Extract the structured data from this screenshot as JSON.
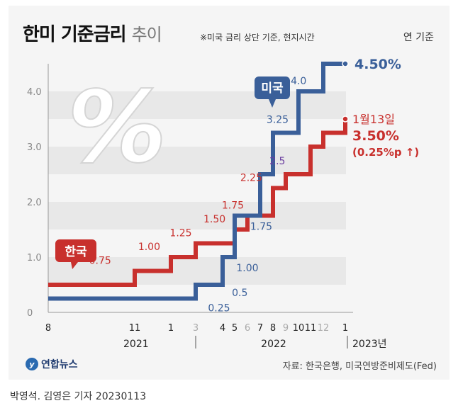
{
  "header": {
    "title": "한미 기준금리",
    "subtitle": "추이",
    "note": "※미국 금리 상단 기준, 현지시간",
    "unit": "연 기준"
  },
  "footer": {
    "logo_text": "연합뉴스",
    "source": "자료: 한국은행, 미국연방준비제도(Fed)",
    "byline": "박영석. 김영은 기자  20230113"
  },
  "colors": {
    "korea": "#c8302d",
    "us": "#3a5f99",
    "us_highlight": "#6b3fa0",
    "grid_band": "#e8e8e8",
    "axis": "#999999"
  },
  "chart_data": {
    "type": "line",
    "step": true,
    "yticks": [
      "0",
      "1.0",
      "2.0",
      "3.0",
      "4.0"
    ],
    "ylim": [
      0,
      4.5
    ],
    "xlabels": [
      "8",
      "11",
      "1",
      "3",
      "4",
      "5",
      "6",
      "7",
      "8",
      "9",
      "10",
      "11",
      "12",
      "1"
    ],
    "xlabel_dim": [
      false,
      false,
      false,
      true,
      false,
      false,
      true,
      false,
      false,
      true,
      false,
      false,
      true,
      false
    ],
    "year_labels": [
      "2021",
      "2022",
      "2023년"
    ],
    "series": [
      {
        "name": "한국",
        "color": "#c8302d",
        "points": [
          [
            0,
            0.5
          ],
          [
            1,
            0.75
          ],
          [
            2,
            1.0
          ],
          [
            3,
            1.25
          ],
          [
            5,
            1.5
          ],
          [
            6,
            1.75
          ],
          [
            8,
            2.25
          ],
          [
            9,
            2.5
          ],
          [
            11,
            3.0
          ],
          [
            12,
            3.25
          ],
          [
            13,
            3.5
          ]
        ],
        "labels": [
          {
            "text": "0.75",
            "x": 0.6,
            "y": 0.75
          },
          {
            "text": "1.00",
            "x": 1.4,
            "y": 1.0
          },
          {
            "text": "1.25",
            "x": 2.4,
            "y": 1.25
          },
          {
            "text": "1.50",
            "x": 3.7,
            "y": 1.5
          },
          {
            "text": "1.75",
            "x": 4.85,
            "y": 1.75
          },
          {
            "text": "2.25",
            "x": 6.3,
            "y": 2.25
          }
        ]
      },
      {
        "name": "미국",
        "color": "#3a5f99",
        "points": [
          [
            0,
            0.25
          ],
          [
            3,
            0.5
          ],
          [
            4,
            1.0
          ],
          [
            5,
            1.75
          ],
          [
            7,
            2.5
          ],
          [
            8,
            3.25
          ],
          [
            10,
            4.0
          ],
          [
            12,
            4.5
          ],
          [
            13,
            4.5
          ]
        ],
        "labels": [
          {
            "text": "0.25",
            "x": 3.3,
            "y": 0.25
          },
          {
            "text": "0.5",
            "x": 4.3,
            "y": 0.5
          },
          {
            "text": "1.00",
            "x": 4.55,
            "y": 1.0
          },
          {
            "text": "1.75",
            "x": 5.55,
            "y": 1.75
          },
          {
            "text": "2.5",
            "x": 7.35,
            "y": 2.5
          },
          {
            "text": "3.25",
            "x": 7.25,
            "y": 3.25
          },
          {
            "text": "4.0",
            "x": 9.9,
            "y": 4.0
          }
        ]
      }
    ],
    "end_labels": {
      "us_value": "4.50%",
      "kr_date": "1월13일",
      "kr_value": "3.50%",
      "kr_change": "(0.25%p ↑)"
    },
    "tags": {
      "korea": "한국",
      "us": "미국"
    },
    "watermark": "%"
  }
}
